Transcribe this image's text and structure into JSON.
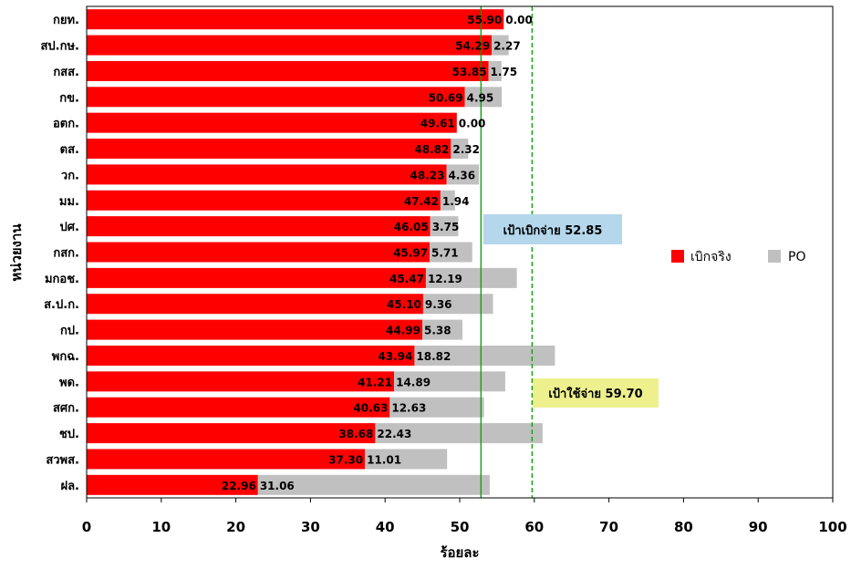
{
  "chart_data": {
    "type": "bar",
    "orientation": "horizontal",
    "stacked": true,
    "categories": [
      "กยท.",
      "สป.กษ.",
      "กสส.",
      "กข.",
      "อตก.",
      "ตส.",
      "วก.",
      "มม.",
      "ปศ.",
      "กสก.",
      "มกอช.",
      "ส.ป.ก.",
      "กป.",
      "พกฉ.",
      "พด.",
      "สศก.",
      "ชป.",
      "สวพส.",
      "ฝล."
    ],
    "series": [
      {
        "name": "เบิกจริง",
        "color": "#ff0000",
        "values": [
          55.9,
          54.29,
          53.85,
          50.69,
          49.61,
          48.82,
          48.23,
          47.42,
          46.05,
          45.97,
          45.47,
          45.1,
          44.99,
          43.94,
          41.21,
          40.63,
          38.68,
          37.3,
          22.96
        ]
      },
      {
        "name": "PO",
        "color": "#c0c0c0",
        "values": [
          0.0,
          2.27,
          1.75,
          4.95,
          0.0,
          2.32,
          4.36,
          1.94,
          3.75,
          5.71,
          12.19,
          9.36,
          5.38,
          18.82,
          14.89,
          12.63,
          22.43,
          11.01,
          31.06
        ]
      }
    ],
    "data_labels_a": [
      "55.90",
      "54.29",
      "53.85",
      "50.69",
      "49.61",
      "48.82",
      "48.23",
      "47.42",
      "46.05",
      "45.97",
      "45.47",
      "45.10",
      "44.99",
      "43.94",
      "41.21",
      "40.63",
      "38.68",
      "37.30",
      "22.96"
    ],
    "data_labels_b": [
      "0.00",
      "2.27",
      "1.75",
      "4.95",
      "0.00",
      "2.32",
      "4.36",
      "1.94",
      "3.75",
      "5.71",
      "12.19",
      "9.36",
      "5.38",
      "18.82",
      "14.89",
      "12.63",
      "22.43",
      "11.01",
      "31.06"
    ],
    "xlim": [
      0,
      100
    ],
    "xticks": [
      0,
      10,
      20,
      30,
      40,
      50,
      60,
      70,
      80,
      90,
      100
    ],
    "xtick_labels": [
      "0",
      "10",
      "20",
      "30",
      "40",
      "50",
      "60",
      "70",
      "80",
      "90",
      "100"
    ],
    "xlabel": "ร้อยละ",
    "ylabel": "หน่วยงาน",
    "grid": false,
    "legend_position": "right",
    "reference_lines": [
      {
        "value": 52.85,
        "style": "solid",
        "color": "#00a000",
        "label": "เป้าเบิกจ่าย 52.85",
        "label_bg": "#b4d7eb"
      },
      {
        "value": 59.7,
        "style": "dashed",
        "color": "#00a000",
        "label": "เป้าใช้จ่าย 59.70",
        "label_bg": "#eef08e"
      }
    ]
  }
}
